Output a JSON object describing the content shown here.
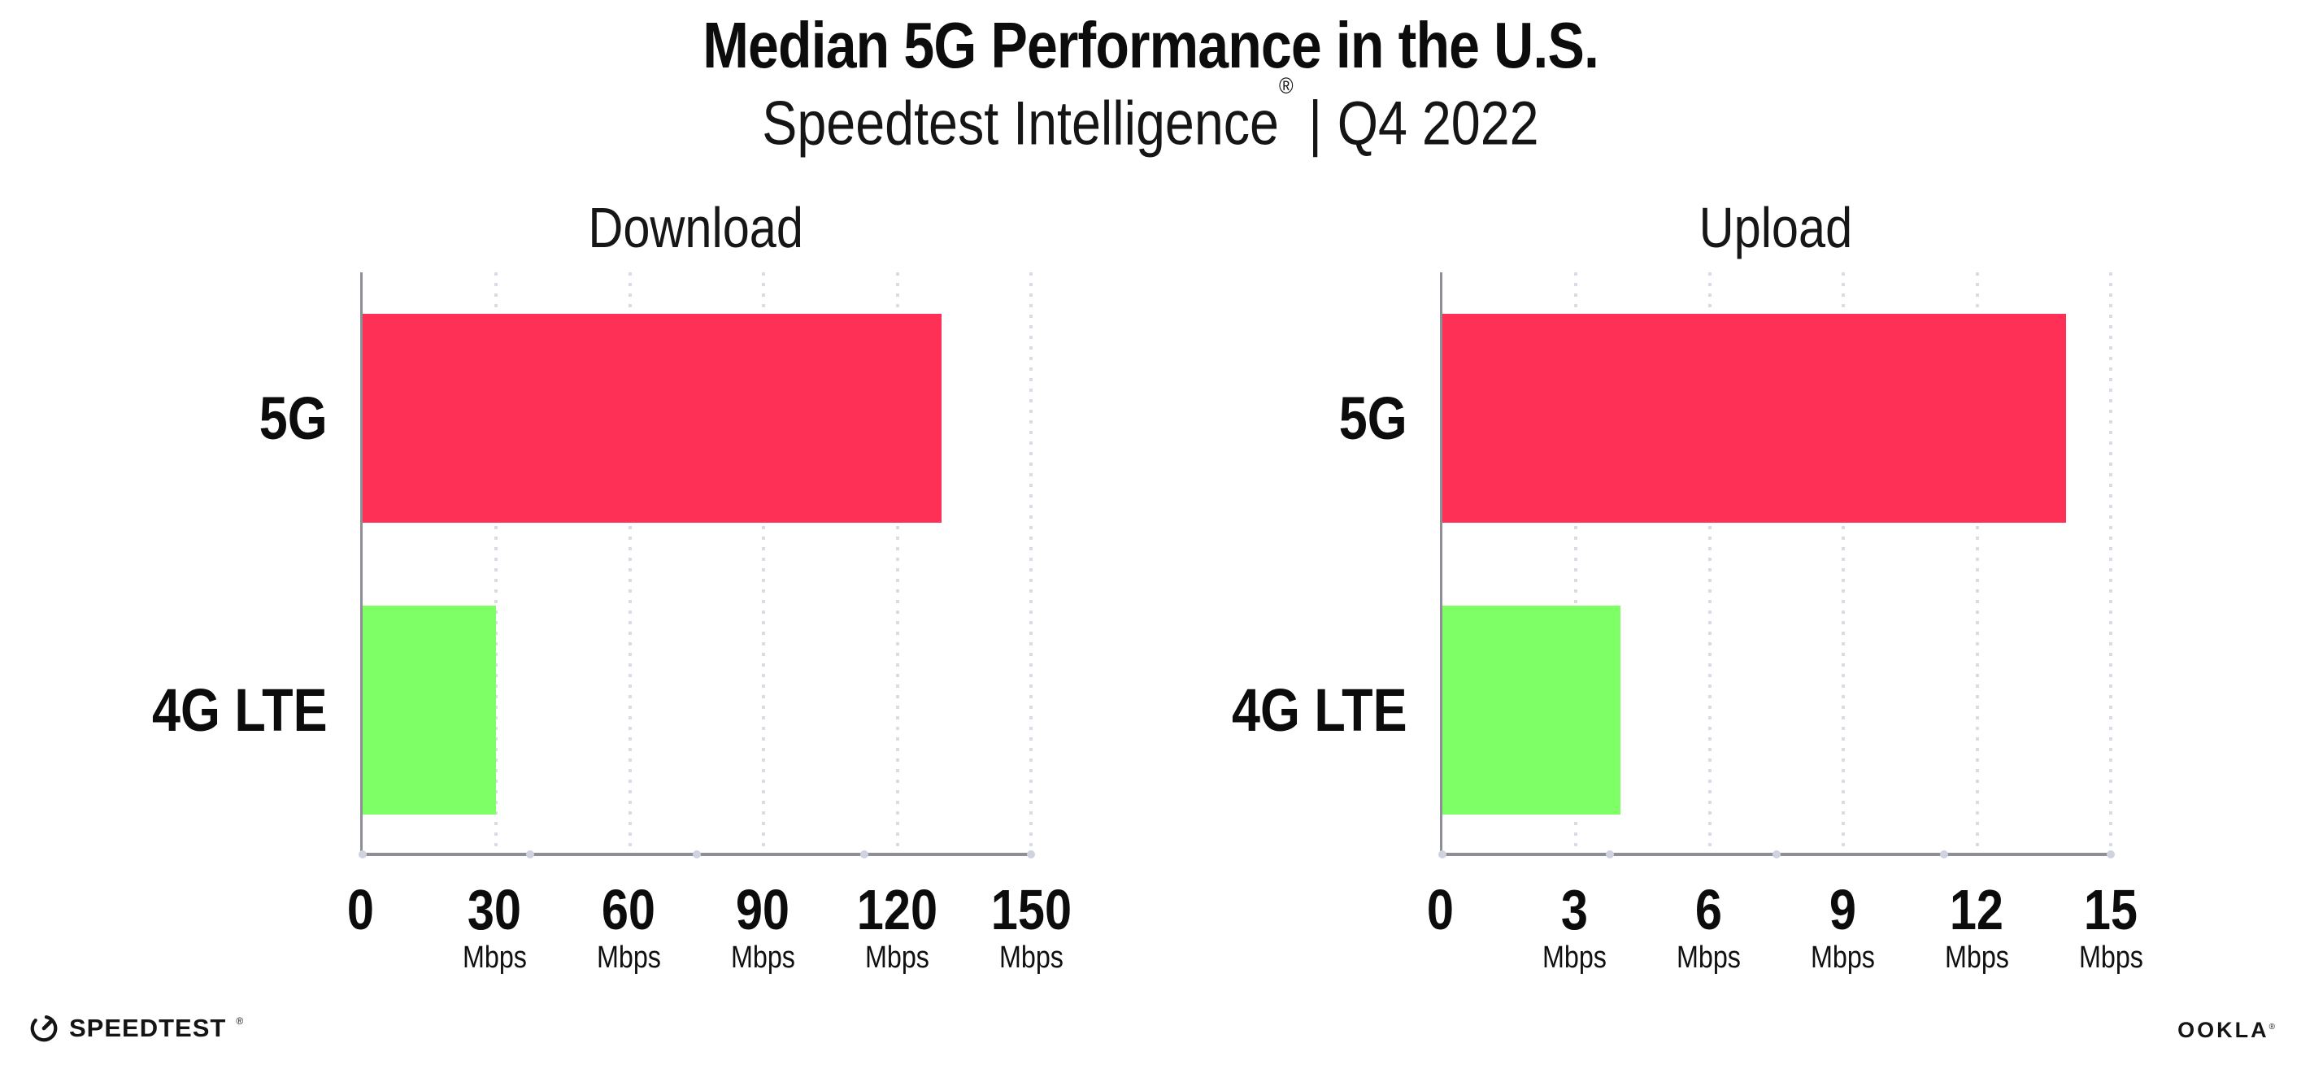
{
  "header": {
    "title": "Median 5G Performance in the U.S.",
    "subtitle_brand": "Speedtest Intelligence",
    "subtitle_reg": "®",
    "subtitle_sep": "|",
    "subtitle_period": "Q4 2022"
  },
  "chart_data": [
    {
      "type": "bar",
      "orientation": "horizontal",
      "title": "Download",
      "categories": [
        "5G",
        "4G LTE"
      ],
      "values": [
        130,
        30
      ],
      "unit": "Mbps",
      "xlim": [
        0,
        150
      ],
      "xticks": [
        0,
        30,
        60,
        90,
        120,
        150
      ],
      "tick_unit_label": "Mbps",
      "bar_colors": [
        "#ff3056",
        "#7fff66"
      ],
      "grid": "dotted-vertical",
      "legend": "none"
    },
    {
      "type": "bar",
      "orientation": "horizontal",
      "title": "Upload",
      "categories": [
        "5G",
        "4G LTE"
      ],
      "values": [
        14,
        4
      ],
      "unit": "Mbps",
      "xlim": [
        0,
        15
      ],
      "xticks": [
        0,
        3,
        6,
        9,
        12,
        15
      ],
      "tick_unit_label": "Mbps",
      "bar_colors": [
        "#ff3056",
        "#7fff66"
      ],
      "grid": "dotted-vertical",
      "legend": "none"
    }
  ],
  "footer": {
    "speedtest_logo_text": "SPEEDTEST",
    "speedtest_mark": "®",
    "ookla_logo_text": "OOKLA",
    "ookla_mark": "®"
  },
  "icons": {
    "speedtest_gauge": "circular speed gauge with needle pointing upper-right"
  },
  "colors": {
    "bar_5g": "#ff3056",
    "bar_4g_lte": "#7fff66",
    "axis": "#8e8e97",
    "gridline_dots": "#d9dbe6",
    "axis_tick_dots": "#d0d3df",
    "text": "#0c0c0c",
    "background": "#ffffff"
  }
}
